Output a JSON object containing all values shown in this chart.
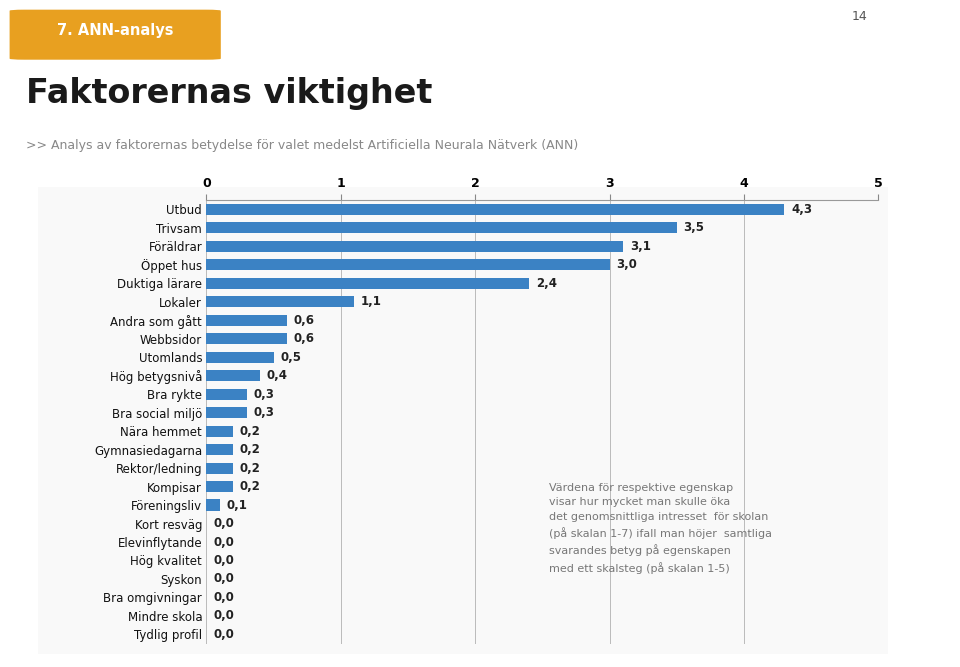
{
  "categories": [
    "Utbud",
    "Trivsam",
    "Föräldrar",
    "Öppet hus",
    "Duktiga lärare",
    "Lokaler",
    "Andra som gått",
    "Webbsidor",
    "Utomlands",
    "Hög betygsnivå",
    "Bra rykte",
    "Bra social miljö",
    "Nära hemmet",
    "Gymnasiedagarna",
    "Rektor/ledning",
    "Kompisar",
    "Föreningsliv",
    "Kort resväg",
    "Elevinflytande",
    "Hög kvalitet",
    "Syskon",
    "Bra omgivningar",
    "Mindre skola",
    "Tydlig profil"
  ],
  "values": [
    4.3,
    3.5,
    3.1,
    3.0,
    2.4,
    1.1,
    0.6,
    0.6,
    0.5,
    0.4,
    0.3,
    0.3,
    0.2,
    0.2,
    0.2,
    0.2,
    0.1,
    0.0,
    0.0,
    0.0,
    0.0,
    0.0,
    0.0,
    0.0
  ],
  "bar_color": "#3b82c4",
  "title": "Faktorernas viktighet",
  "subtitle": ">> Analys av faktorernas betydelse för valet medelst Artificiella Neurala Nätverk (ANN)",
  "header_label": "7. ANN-analys",
  "header_bg": "#e8a020",
  "page_number": "14",
  "annotation_text": "Värdena för respektive egenskap\nvisar hur mycket man skulle öka\ndet genomsnittliga intresset  för skolan\n(på skalan 1-7) ifall man höjer  samtliga\nsvarandes betyg på egenskapen\nmed ett skalsteg (på skalan 1-5)",
  "xlim": [
    0,
    5
  ],
  "xticks": [
    0,
    1,
    2,
    3,
    4,
    5
  ]
}
